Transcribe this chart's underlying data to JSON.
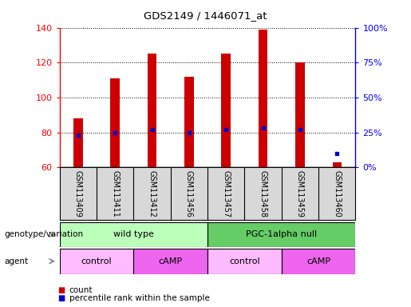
{
  "title": "GDS2149 / 1446071_at",
  "samples": [
    "GSM113409",
    "GSM113411",
    "GSM113412",
    "GSM113456",
    "GSM113457",
    "GSM113458",
    "GSM113459",
    "GSM113460"
  ],
  "counts": [
    88,
    111,
    125,
    112,
    125,
    139,
    120,
    63
  ],
  "percentile_ranks": [
    23,
    25,
    27,
    25,
    27,
    28,
    27,
    10
  ],
  "ylim_left": [
    60,
    140
  ],
  "ylim_right": [
    0,
    100
  ],
  "yticks_left": [
    60,
    80,
    100,
    120,
    140
  ],
  "yticks_right": [
    0,
    25,
    50,
    75,
    100
  ],
  "bar_color": "#cc0000",
  "dot_color": "#0000cc",
  "genotype_groups": [
    {
      "label": "wild type",
      "start": 0,
      "end": 4,
      "color": "#bbffbb"
    },
    {
      "label": "PGC-1alpha null",
      "start": 4,
      "end": 8,
      "color": "#66cc66"
    }
  ],
  "agent_groups": [
    {
      "label": "control",
      "start": 0,
      "end": 2,
      "color": "#ffbbff"
    },
    {
      "label": "cAMP",
      "start": 2,
      "end": 4,
      "color": "#ee66ee"
    },
    {
      "label": "control",
      "start": 4,
      "end": 6,
      "color": "#ffbbff"
    },
    {
      "label": "cAMP",
      "start": 6,
      "end": 8,
      "color": "#ee66ee"
    }
  ],
  "xlabel_genotype": "genotype/variation",
  "xlabel_agent": "agent",
  "bar_width": 0.25,
  "background_color": "#ffffff",
  "plot_bg_color": "#d8d8d8"
}
